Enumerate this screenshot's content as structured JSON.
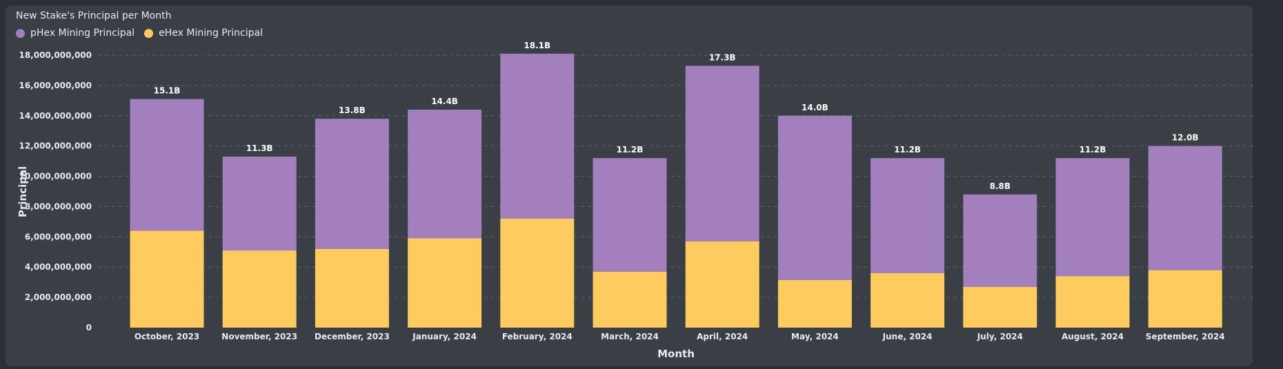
{
  "chart_data": {
    "type": "bar",
    "stacked": true,
    "title": "New Stake's Principal per Month",
    "xlabel": "Month",
    "ylabel": "Principal",
    "ylim": [
      0,
      18000000000
    ],
    "yticks": [
      "0",
      "2,000,000,000",
      "4,000,000,000",
      "6,000,000,000",
      "8,000,000,000",
      "10,000,000,000",
      "12,000,000,000",
      "14,000,000,000",
      "16,000,000,000",
      "18,000,000,000"
    ],
    "grid": true,
    "legend_position": "top-left",
    "categories": [
      "October, 2023",
      "November, 2023",
      "December, 2023",
      "January, 2024",
      "February, 2024",
      "March, 2024",
      "April, 2024",
      "May, 2024",
      "June, 2024",
      "July, 2024",
      "August, 2024",
      "September, 2024"
    ],
    "series": [
      {
        "name": "eHex Mining Principal",
        "color": "#fdcb5e",
        "values": [
          6400000000,
          5100000000,
          5200000000,
          5900000000,
          7200000000,
          3700000000,
          5700000000,
          3150000000,
          3600000000,
          2700000000,
          3400000000,
          3800000000
        ]
      },
      {
        "name": "pHex Mining Principal",
        "color": "#a27fbd",
        "values": [
          8700000000,
          6200000000,
          8600000000,
          8500000000,
          10900000000,
          7500000000,
          11600000000,
          10850000000,
          7600000000,
          6100000000,
          7800000000,
          8200000000
        ]
      }
    ],
    "totals_labels": [
      "15.1B",
      "11.3B",
      "13.8B",
      "14.4B",
      "18.1B",
      "11.2B",
      "17.3B",
      "14.0B",
      "11.2B",
      "8.8B",
      "11.2B",
      "12.0B"
    ]
  },
  "legend": [
    {
      "label": "pHex Mining Principal",
      "color": "#a27fbd"
    },
    {
      "label": "eHex Mining Principal",
      "color": "#fdcb5e"
    }
  ]
}
